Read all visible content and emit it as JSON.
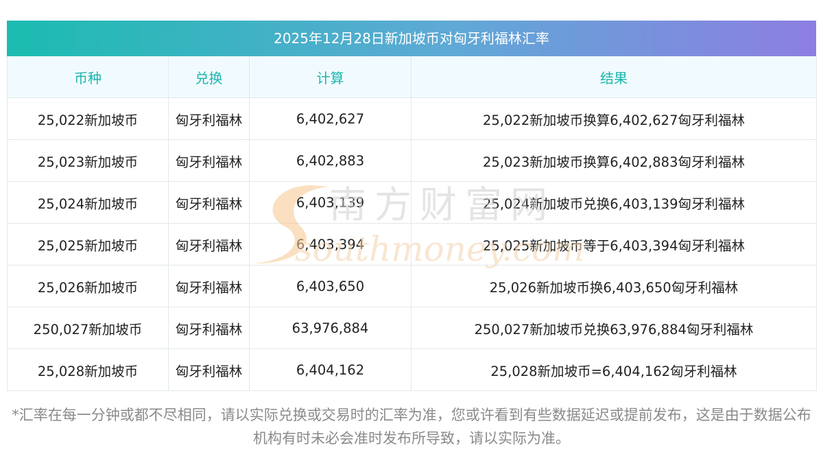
{
  "title": "2025年12月28日新加坡币对匈牙利福林汇率",
  "headers": [
    "币种",
    "兑换",
    "计算",
    "结果"
  ],
  "rows": [
    {
      "currency": "25,022新加坡币",
      "target": "匈牙利福林",
      "amount": "6,402,627",
      "result": "25,022新加坡币换算6,402,627匈牙利福林"
    },
    {
      "currency": "25,023新加坡币",
      "target": "匈牙利福林",
      "amount": "6,402,883",
      "result": "25,023新加坡币换算6,402,883匈牙利福林"
    },
    {
      "currency": "25,024新加坡币",
      "target": "匈牙利福林",
      "amount": "6,403,139",
      "result": "25,024新加坡币兑换6,403,139匈牙利福林"
    },
    {
      "currency": "25,025新加坡币",
      "target": "匈牙利福林",
      "amount": "6,403,394",
      "result": "25,025新加坡币等于6,403,394匈牙利福林"
    },
    {
      "currency": "25,026新加坡币",
      "target": "匈牙利福林",
      "amount": "6,403,650",
      "result": "25,026新加坡币换6,403,650匈牙利福林"
    },
    {
      "currency": "250,027新加坡币",
      "target": "匈牙利福林",
      "amount": "63,976,884",
      "result": "250,027新加坡币兑换63,976,884匈牙利福林"
    },
    {
      "currency": "25,028新加坡币",
      "target": "匈牙利福林",
      "amount": "6,404,162",
      "result": "25,028新加坡币=6,404,162匈牙利福林"
    }
  ],
  "watermark": {
    "chinese": "南方财富网",
    "latin": "southmoney.com"
  },
  "note": "*汇率在每一分钟或都不尽相同，请以实际兑换或交易时的汇率为准，您或许看到有些数据延迟或提前发布，这是由于数据公布机构有时未必会准时发布所导致，请以实际为准。",
  "colors": {
    "header_text": "#1cb5ad",
    "title_gradient_start": "#1bbcb0",
    "title_gradient_end": "#8d7ee2",
    "watermark_gray": "#d6d6d6",
    "watermark_orange": "#f7c78f"
  }
}
